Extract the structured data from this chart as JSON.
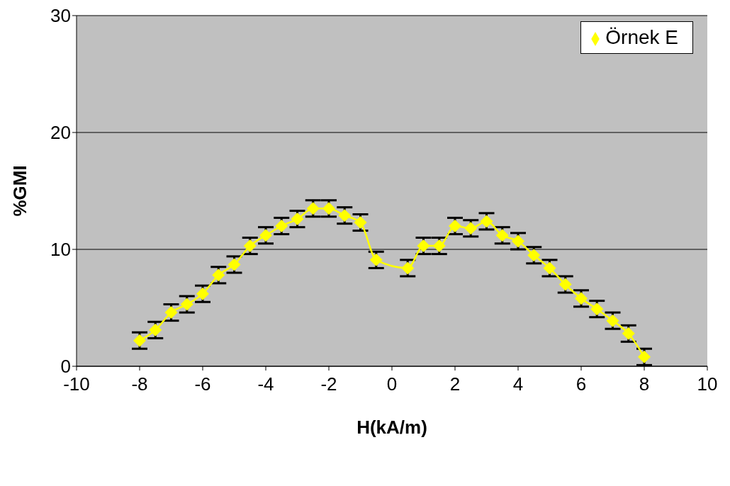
{
  "chart_data": {
    "type": "line",
    "xlabel": "H(kA/m)",
    "ylabel": "%GMI",
    "x": [
      -8,
      -7.5,
      -7,
      -6.5,
      -6,
      -5.5,
      -5,
      -4.5,
      -4,
      -3.5,
      -3,
      -2.5,
      -2,
      -1.5,
      -1,
      -0.5,
      0.5,
      1,
      1.5,
      2,
      2.5,
      3,
      3.5,
      4,
      4.5,
      5,
      5.5,
      6,
      6.5,
      7,
      7.5,
      8
    ],
    "series": [
      {
        "name": "Örnek E",
        "color": "#ffff00",
        "values": [
          2.2,
          3.1,
          4.6,
          5.3,
          6.2,
          7.8,
          8.7,
          10.3,
          11.2,
          12.0,
          12.6,
          13.5,
          13.5,
          12.9,
          12.3,
          9.1,
          8.4,
          10.3,
          10.3,
          12.0,
          11.8,
          12.4,
          11.2,
          10.7,
          9.5,
          8.4,
          7.0,
          5.8,
          4.9,
          3.9,
          2.8,
          0.8
        ],
        "errors": [
          0.7,
          0.7,
          0.7,
          0.7,
          0.7,
          0.7,
          0.7,
          0.7,
          0.7,
          0.7,
          0.7,
          0.7,
          0.7,
          0.7,
          0.7,
          0.7,
          0.7,
          0.7,
          0.7,
          0.7,
          0.7,
          0.7,
          0.7,
          0.7,
          0.7,
          0.7,
          0.7,
          0.7,
          0.7,
          0.7,
          0.7,
          0.7
        ]
      }
    ],
    "xlim": [
      -10,
      10
    ],
    "xticks": [
      -10,
      -8,
      -6,
      -4,
      -2,
      0,
      2,
      4,
      6,
      8,
      10
    ],
    "ylim": [
      0,
      30
    ],
    "yticks": [
      0,
      10,
      20,
      30
    ],
    "grid": "y",
    "legend": "top right",
    "marker": "diamond",
    "line_style": "solid"
  }
}
